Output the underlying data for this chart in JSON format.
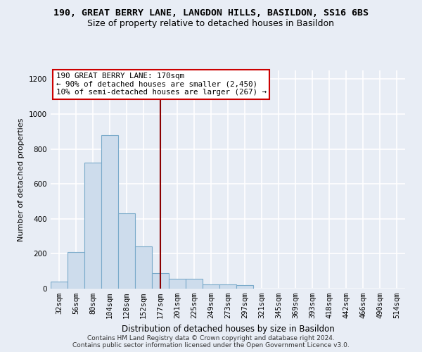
{
  "title_line1": "190, GREAT BERRY LANE, LANGDON HILLS, BASILDON, SS16 6BS",
  "title_line2": "Size of property relative to detached houses in Basildon",
  "xlabel": "Distribution of detached houses by size in Basildon",
  "ylabel": "Number of detached properties",
  "categories": [
    "32sqm",
    "56sqm",
    "80sqm",
    "104sqm",
    "128sqm",
    "152sqm",
    "177sqm",
    "201sqm",
    "225sqm",
    "249sqm",
    "273sqm",
    "297sqm",
    "321sqm",
    "345sqm",
    "369sqm",
    "393sqm",
    "418sqm",
    "442sqm",
    "466sqm",
    "490sqm",
    "514sqm"
  ],
  "values": [
    40,
    210,
    720,
    880,
    430,
    240,
    90,
    55,
    55,
    25,
    25,
    20,
    0,
    0,
    0,
    0,
    0,
    0,
    0,
    0,
    0
  ],
  "bar_color": "#cddcec",
  "bar_edge_color": "#7aaaca",
  "vline_x": 6.0,
  "vline_color": "#8b0000",
  "annotation_text": "190 GREAT BERRY LANE: 170sqm\n← 90% of detached houses are smaller (2,450)\n10% of semi-detached houses are larger (267) →",
  "box_color": "white",
  "box_edge_color": "#cc0000",
  "ylim": [
    0,
    1250
  ],
  "yticks": [
    0,
    200,
    400,
    600,
    800,
    1000,
    1200
  ],
  "footer_line1": "Contains HM Land Registry data © Crown copyright and database right 2024.",
  "footer_line2": "Contains public sector information licensed under the Open Government Licence v3.0.",
  "bg_color": "#e8edf5",
  "plot_bg_color": "#e8edf5",
  "grid_color": "white",
  "title_fontsize": 9.5,
  "subtitle_fontsize": 9,
  "ylabel_fontsize": 8,
  "xlabel_fontsize": 8.5,
  "tick_fontsize": 7.5,
  "footer_fontsize": 6.5
}
